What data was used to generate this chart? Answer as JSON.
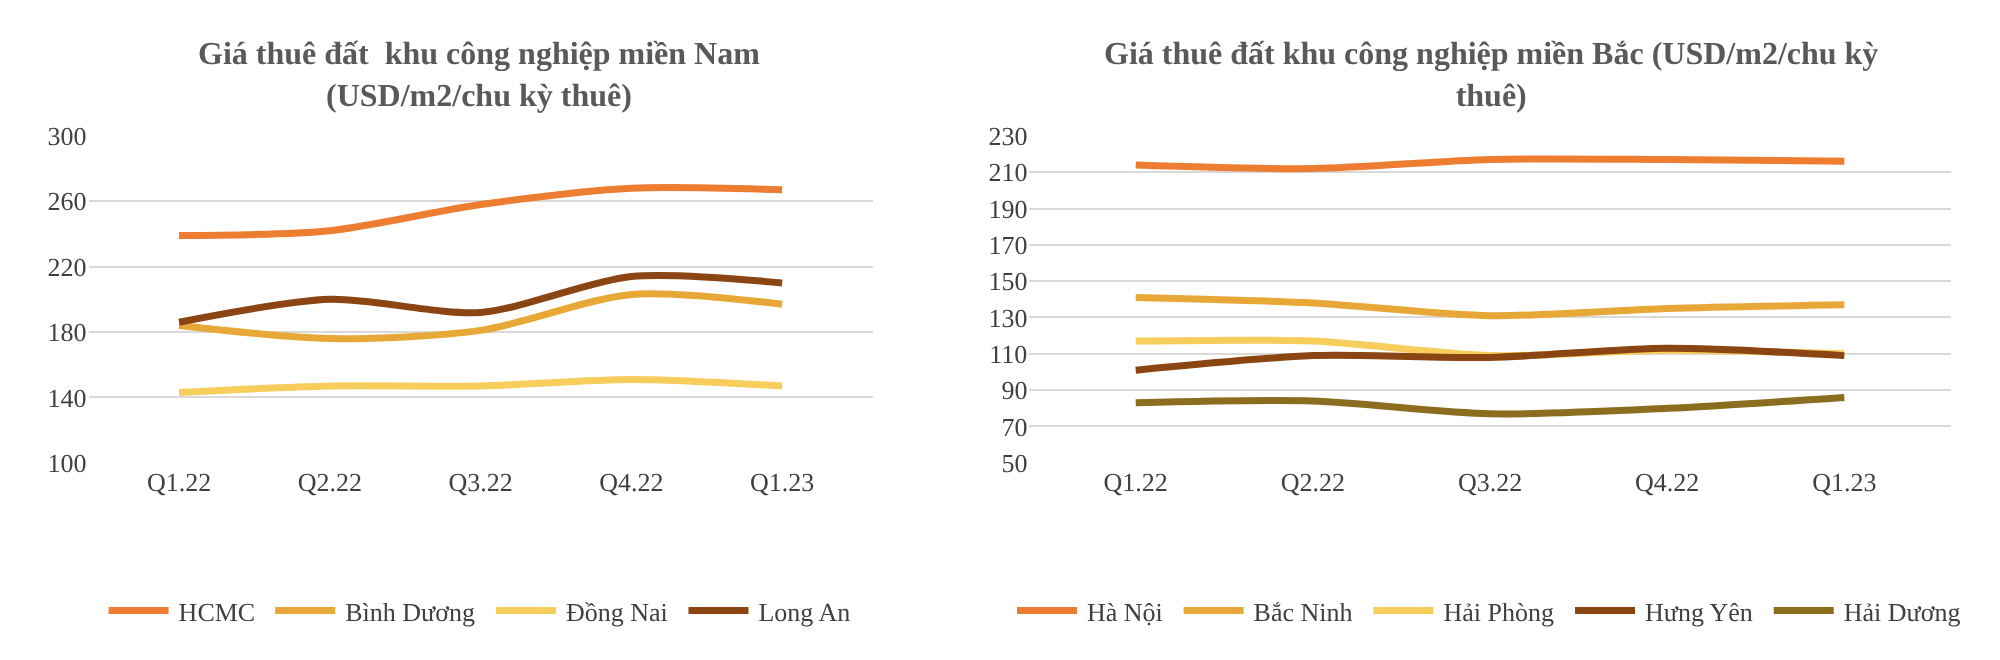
{
  "chart_data": [
    {
      "type": "line",
      "title": "Giá thuê đất  khu công nghiệp miền Nam\n(USD/m2/chu kỳ thuê)",
      "categories": [
        "Q1.22",
        "Q2.22",
        "Q3.22",
        "Q4.22",
        "Q1.23"
      ],
      "ylim": [
        100,
        300
      ],
      "yticks": [
        100,
        140,
        180,
        220,
        260,
        300
      ],
      "grid": "y",
      "legend": "bottom",
      "line_style": "solid",
      "series": [
        {
          "name": "HCMC",
          "color": "#ed7d31",
          "values": [
            239,
            242,
            258,
            268,
            267
          ]
        },
        {
          "name": "Bình Dương",
          "color": "#e8a838",
          "values": [
            184,
            176,
            181,
            203,
            197
          ]
        },
        {
          "name": "Đồng Nai",
          "color": "#f7cd5b",
          "values": [
            143,
            147,
            147,
            151,
            147
          ]
        },
        {
          "name": "Long An",
          "color": "#8b4513",
          "values": [
            186,
            200,
            192,
            214,
            210
          ]
        }
      ]
    },
    {
      "type": "line",
      "title": "Giá thuê đất khu công nghiệp miền Bắc (USD/m2/chu kỳ\nthuê)",
      "categories": [
        "Q1.22",
        "Q2.22",
        "Q3.22",
        "Q4.22",
        "Q1.23"
      ],
      "ylim": [
        50,
        230
      ],
      "yticks": [
        50,
        70,
        90,
        110,
        130,
        150,
        170,
        190,
        210,
        230
      ],
      "grid": "y",
      "legend": "bottom",
      "line_style": "solid",
      "series": [
        {
          "name": "Hà Nội",
          "color": "#ed7d31",
          "values": [
            214,
            212,
            217,
            217,
            216
          ]
        },
        {
          "name": "Bắc Ninh",
          "color": "#e8a838",
          "values": [
            141,
            138,
            131,
            135,
            137
          ]
        },
        {
          "name": "Hải Phòng",
          "color": "#f7cd5b",
          "values": [
            117,
            117,
            109,
            112,
            110
          ]
        },
        {
          "name": "Hưng Yên",
          "color": "#8b4513",
          "values": [
            101,
            109,
            108,
            113,
            109
          ]
        },
        {
          "name": "Hải Dương",
          "color": "#8c6d1f",
          "values": [
            83,
            84,
            77,
            80,
            86
          ]
        }
      ]
    }
  ]
}
